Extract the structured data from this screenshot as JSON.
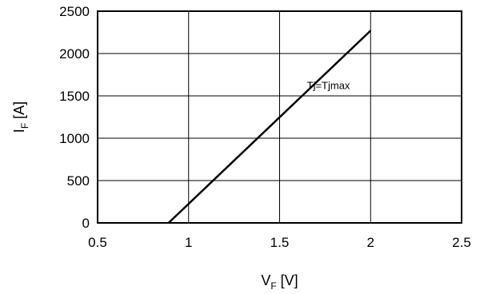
{
  "chart_data": {
    "type": "line",
    "title": "",
    "xlabel": {
      "main": "V",
      "sub": "F",
      "unit": " [V]"
    },
    "ylabel": {
      "main": "I",
      "sub": "F",
      "unit": " [A]"
    },
    "xlim": [
      0.5,
      2.5
    ],
    "ylim": [
      0,
      2500
    ],
    "xticks": [
      0.5,
      1,
      1.5,
      2,
      2.5
    ],
    "xtick_labels": [
      "0.5",
      "1",
      "1.5",
      "2",
      "2.5"
    ],
    "yticks": [
      0,
      500,
      1000,
      1500,
      2000,
      2500
    ],
    "ytick_labels": [
      "0",
      "500",
      "1000",
      "1500",
      "2000",
      "2500"
    ],
    "grid": true,
    "series": [
      {
        "x": [
          0.89,
          2.0
        ],
        "y": [
          0,
          2270
        ],
        "color": "#000000"
      }
    ],
    "annotations": [
      {
        "text": "Tj=Tjmax",
        "x": 1.65,
        "y": 1580
      }
    ]
  }
}
